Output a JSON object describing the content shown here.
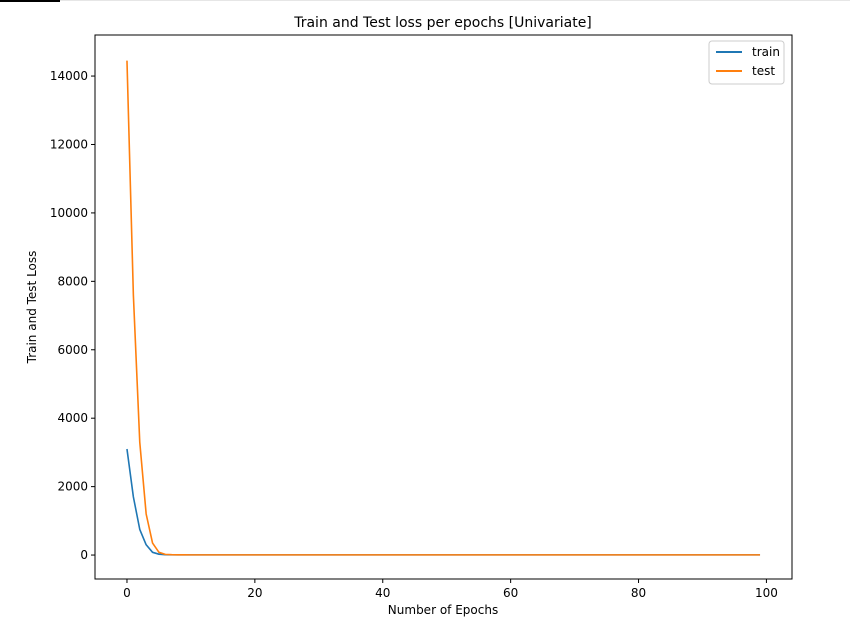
{
  "chart_data": {
    "type": "line",
    "title": "Train and Test loss per epochs [Univariate]",
    "xlabel": "Number of Epochs",
    "ylabel": "Train and Test Loss",
    "xlim": [
      -5,
      104
    ],
    "ylim": [
      -700,
      15200
    ],
    "x_ticks": [
      0,
      20,
      40,
      60,
      80,
      100
    ],
    "y_ticks": [
      0,
      2000,
      4000,
      6000,
      8000,
      10000,
      12000,
      14000
    ],
    "grid": false,
    "legend_position": "top-right",
    "series": [
      {
        "name": "train",
        "color": "#1f77b4",
        "x": [
          0,
          1,
          2,
          3,
          4,
          5,
          6,
          7,
          8,
          9,
          10,
          99
        ],
        "y": [
          3100,
          1700,
          750,
          300,
          80,
          25,
          10,
          8,
          6,
          5,
          5,
          5
        ]
      },
      {
        "name": "test",
        "color": "#ff7f0e",
        "x": [
          0,
          1,
          2,
          3,
          4,
          5,
          6,
          7,
          8,
          9,
          10,
          99
        ],
        "y": [
          14450,
          7600,
          3300,
          1200,
          350,
          80,
          20,
          10,
          8,
          6,
          5,
          5
        ]
      }
    ]
  }
}
